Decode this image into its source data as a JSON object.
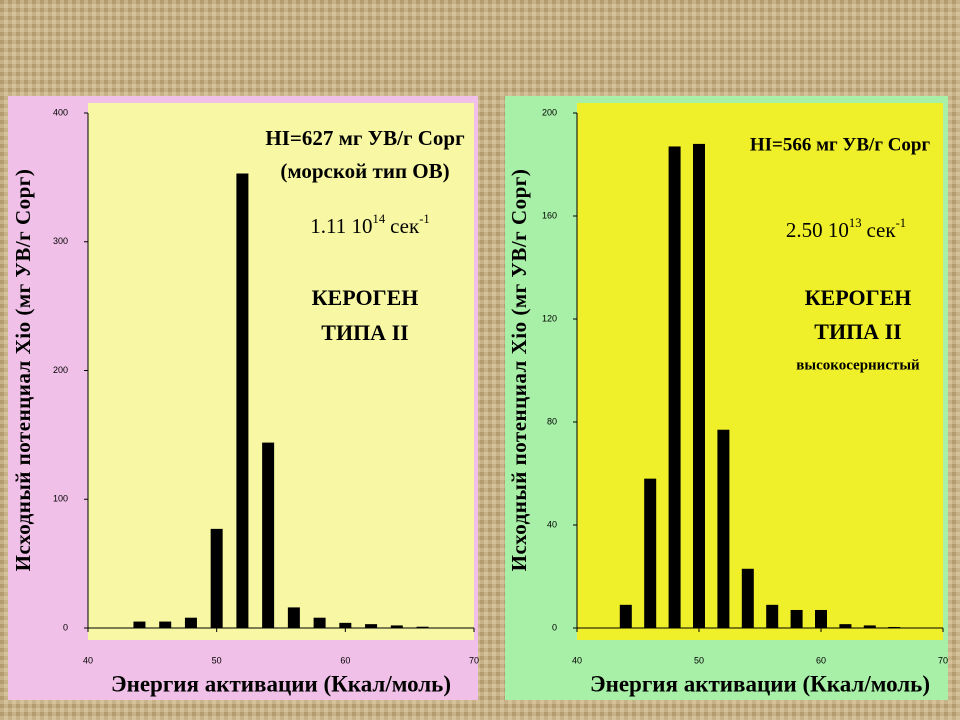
{
  "chart_data": [
    {
      "type": "bar",
      "y_label": "Исходный потенциал Xio (мг УВ/г Сорг)",
      "x_label": "Энергия активации (Ккал/моль)",
      "annotations": [
        "HI=627 мг УВ/г Сорг",
        "(морской тип ОВ)",
        "КЕРОГЕН",
        "ТИПА II"
      ],
      "rate": {
        "mantissa": "1.11 10",
        "exponent": "14",
        "unit": "сек",
        "unit_exponent": "-1"
      },
      "x": [
        44,
        46,
        48,
        50,
        52,
        54,
        56,
        58,
        60,
        62,
        64,
        66
      ],
      "values": [
        5,
        5,
        8,
        77,
        353,
        144,
        16,
        8,
        4,
        3,
        2,
        1
      ],
      "color": "#000000",
      "xlim": [
        40,
        70
      ],
      "xticks": [
        40,
        50,
        60,
        70
      ],
      "ylim": [
        0,
        400
      ],
      "yticks": [
        0,
        100,
        200,
        300,
        400
      ]
    },
    {
      "type": "bar",
      "y_label": "Исходный потенциал Xio (мг УВ/г Сорг)",
      "x_label": "Энергия активации (Ккал/моль)",
      "annotations": [
        "HI=566 мг УВ/г Сорг",
        "КЕРОГЕН",
        "ТИПА II",
        "высокосернистый"
      ],
      "rate": {
        "mantissa": "2.50 10",
        "exponent": "13",
        "unit": "сек",
        "unit_exponent": "-1"
      },
      "x": [
        44,
        46,
        48,
        50,
        52,
        54,
        56,
        58,
        60,
        62,
        64,
        66
      ],
      "values": [
        9,
        58,
        187,
        188,
        77,
        23,
        9,
        7,
        7,
        1.5,
        1,
        0.4
      ],
      "color": "#000000",
      "xlim": [
        40,
        70
      ],
      "xticks": [
        40,
        50,
        60,
        70
      ],
      "ylim": [
        0,
        200
      ],
      "yticks": [
        0,
        40,
        80,
        120,
        160,
        200
      ]
    }
  ]
}
